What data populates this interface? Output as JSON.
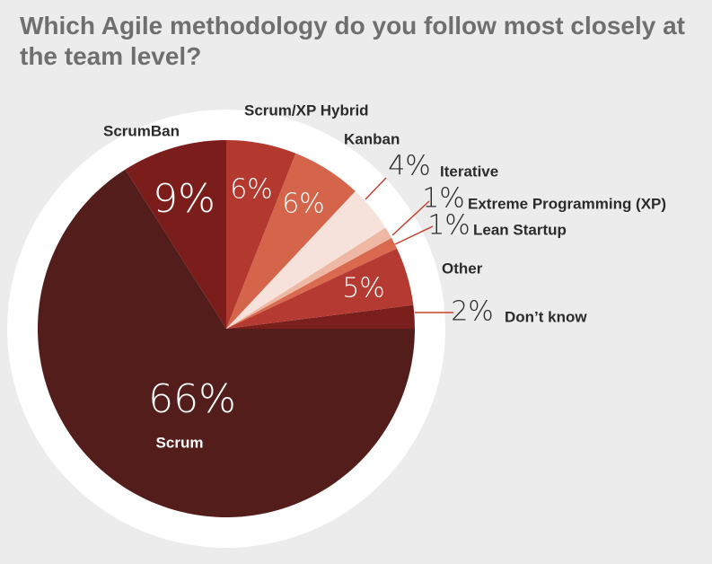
{
  "title": "Which Agile methodology do you follow most closely at the team level?",
  "chart_data": {
    "type": "pie",
    "title": "Which Agile methodology do you follow most closely at the team level?",
    "unit": "%",
    "slices": [
      {
        "label": "Don’t know",
        "value": 2,
        "pct_label": "2%",
        "color": "#7a1f1c"
      },
      {
        "label": "Other",
        "value": 5,
        "pct_label": "5%",
        "color": "#b43a32"
      },
      {
        "label": "Lean Startup",
        "value": 1,
        "pct_label": "1%",
        "color": "#d9694f"
      },
      {
        "label": "Extreme Programming (XP)",
        "value": 1,
        "pct_label": "1%",
        "color": "#eeb8a4"
      },
      {
        "label": "Iterative",
        "value": 4,
        "pct_label": "4%",
        "color": "#f6e2da"
      },
      {
        "label": "Kanban",
        "value": 6,
        "pct_label": "6%",
        "color": "#d4654b"
      },
      {
        "label": "Scrum/XP Hybrid",
        "value": 6,
        "pct_label": "6%",
        "color": "#b3392f"
      },
      {
        "label": "ScrumBan",
        "value": 9,
        "pct_label": "9%",
        "color": "#7b1e1b"
      },
      {
        "label": "Scrum",
        "value": 66,
        "pct_label": "66%",
        "color": "#521d1b"
      }
    ]
  },
  "colors": {
    "background": "#ececec",
    "title": "#6f6f6f",
    "text": "#2b2b2b",
    "inner_text": "#ffffff",
    "pie_ring": "#ffffff",
    "leader": "#c8412f"
  }
}
